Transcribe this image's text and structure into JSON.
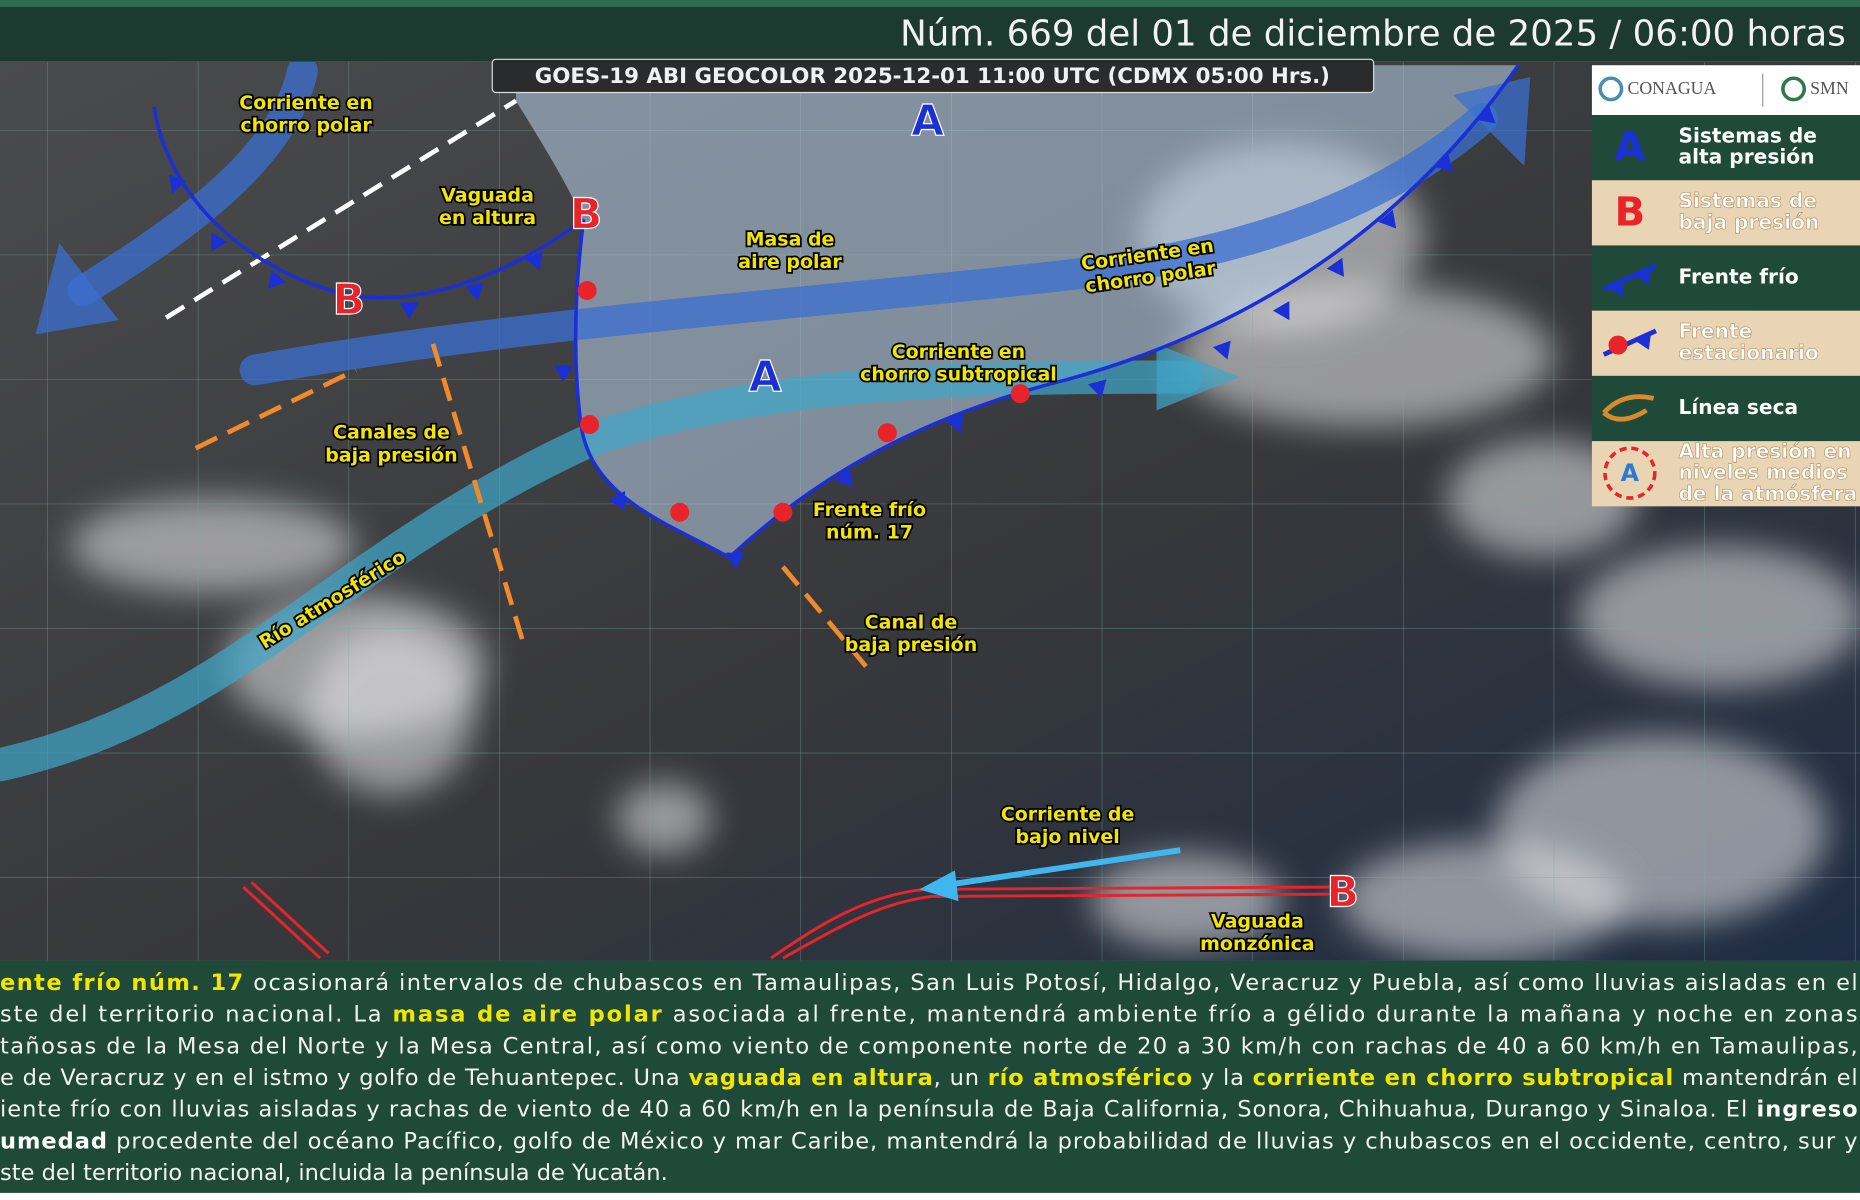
{
  "header": {
    "title": "Núm. 669 del 01 de diciembre de 2025 / 06:00 horas"
  },
  "satellite_label": "GOES-19 ABI GEOCOLOR 2025-12-01 11:00 UTC (CDMX  05:00 Hrs.)",
  "map": {
    "pressure_systems": [
      {
        "letter": "A",
        "color": "#1a2fd6"
      },
      {
        "letter": "A",
        "color": "#1a2fd6"
      },
      {
        "letter": "B",
        "color": "#e8232a"
      },
      {
        "letter": "B",
        "color": "#e8232a"
      },
      {
        "letter": "B",
        "color": "#e8232a"
      }
    ],
    "labels": [
      {
        "lines": [
          "Corriente en",
          "chorro polar"
        ]
      },
      {
        "lines": [
          "Vaguada",
          "en altura"
        ]
      },
      {
        "lines": [
          "Masa de",
          "aire polar"
        ]
      },
      {
        "lines": [
          "Corriente en",
          "chorro polar"
        ]
      },
      {
        "lines": [
          "Corriente en",
          "chorro subtropical"
        ]
      },
      {
        "lines": [
          "Canales de",
          "baja presión"
        ]
      },
      {
        "lines": [
          "Frente frío",
          "núm. 17"
        ]
      },
      {
        "lines": [
          "Canal de",
          "baja presión"
        ]
      },
      {
        "lines": [
          "Río atmosférico"
        ]
      },
      {
        "lines": [
          "Corriente de",
          "bajo nivel"
        ]
      },
      {
        "lines": [
          "Vaguada",
          "monzónica"
        ]
      }
    ]
  },
  "legend": {
    "logos": [
      "CONAGUA",
      "SMN"
    ],
    "items": [
      {
        "symbol": "A",
        "lines": [
          "Sistemas de",
          "alta presión"
        ]
      },
      {
        "symbol": "B",
        "lines": [
          "Sistemas de",
          "baja presión"
        ]
      },
      {
        "lines": [
          "Frente frío"
        ]
      },
      {
        "lines": [
          "Frente",
          "estacionario"
        ]
      },
      {
        "lines": [
          "Línea seca"
        ]
      },
      {
        "symbol": "A",
        "lines": [
          "Alta presión en",
          "niveles medios",
          "de la atmósfera"
        ]
      }
    ]
  },
  "bulletin": {
    "lines": [
      [
        {
          "text": "ente frío núm. 17",
          "emphasis": "yellow"
        },
        {
          "text": " ocasionará intervalos de chubascos en Tamaulipas, San Luis Potosí, Hidalgo, Veracruz y Puebla, así como lluvias aisladas en el"
        }
      ],
      [
        {
          "text": "ste del territorio nacional. La "
        },
        {
          "text": "masa de aire polar",
          "emphasis": "yellow"
        },
        {
          "text": " asociada al frente, mantendrá ambiente frío a gélido durante la mañana y noche en zonas"
        }
      ],
      [
        {
          "text": "tañosas de la Mesa del Norte y la Mesa Central, así como viento de componente norte de 20 a 30 km/h con rachas de 40 a 60 km/h en Tamaulipas,"
        }
      ],
      [
        {
          "text": "e de Veracruz y en el istmo y golfo de Tehuantepec. Una "
        },
        {
          "text": "vaguada en altura",
          "emphasis": "yellow"
        },
        {
          "text": ", un "
        },
        {
          "text": "río atmosférico",
          "emphasis": "yellow"
        },
        {
          "text": " y la "
        },
        {
          "text": "corriente en chorro subtropical",
          "emphasis": "yellow"
        },
        {
          "text": " mantendrán el"
        }
      ],
      [
        {
          "text": "iente frío con lluvias aisladas y rachas de viento de 40 a 60 km/h en la península de Baja California, Sonora, Chihuahua, Durango y Sinaloa. El "
        },
        {
          "text": "ingreso",
          "emphasis": "white"
        }
      ],
      [
        {
          "text": "umedad",
          "emphasis": "white"
        },
        {
          "text": " procedente del océano Pacífico, golfo de México y mar Caribe, mantendrá la probabilidad de lluvias y chubascos en el occidente, centro, sur y"
        }
      ],
      [
        {
          "text": "ste del territorio nacional, incluida la península de Yucatán."
        }
      ]
    ]
  }
}
